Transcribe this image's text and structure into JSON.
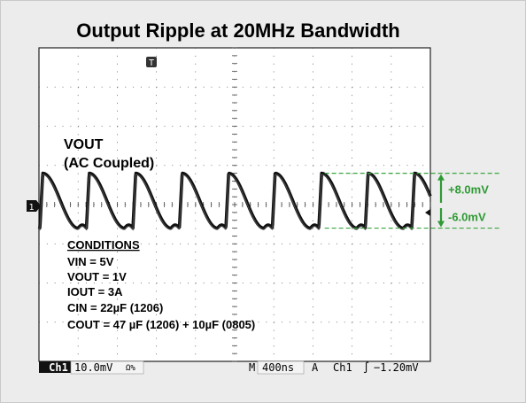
{
  "chart_data": {
    "type": "line",
    "title": "Output Ripple at 20MHz Bandwidth",
    "trace_label": "VOUT",
    "trace_sublabel": "(AC Coupled)",
    "x_units": "ns",
    "y_units": "mV",
    "time_per_div_ns": 400,
    "volts_per_div_mV": 10.0,
    "divisions_x": 10,
    "divisions_y": 8,
    "xlim": [
      0,
      4000
    ],
    "ylim": [
      -40,
      40
    ],
    "ripple_period_ns": 475,
    "peak_mV": 8.0,
    "trough_mV": -6.0,
    "peak_label": "+8.0mV",
    "trough_label": "-6.0mV",
    "trigger_level_mV": -1.2,
    "grid": true
  },
  "conditions": {
    "heading": "CONDITIONS",
    "lines": [
      "VIN = 5V",
      "VOUT = 1V",
      "IOUT = 3A",
      "CIN = 22µF (1206)",
      "COUT = 47 µF (1206) + 10µF (0805)"
    ]
  },
  "status_bar": {
    "channel": "Ch1",
    "scale": "10.0mV",
    "scale_suffix": "Ω%",
    "timebase_prefix": "M",
    "timebase": "400ns",
    "trigger_mode": "A",
    "trigger_channel": "Ch1",
    "trigger_slope": "∫",
    "trigger_level": "−1.20mV"
  },
  "markers": {
    "channel_marker": "1",
    "trigger_position_marker": "T"
  },
  "colors": {
    "trace": "#111111",
    "grid": "#222222",
    "annotation": "#2e9a34",
    "background": "#ffffff"
  }
}
